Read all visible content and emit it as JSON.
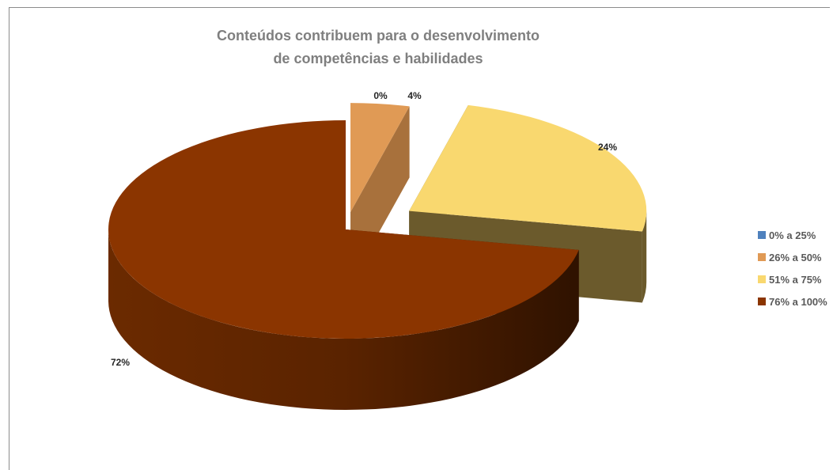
{
  "chart_data": {
    "type": "pie",
    "title_lines": [
      "Conteúdos contribuem para o desenvolvimento",
      "de competências e habilidades"
    ],
    "legend_position": "right",
    "slices": [
      {
        "label": "0% a 25%",
        "value": 0,
        "data_label": "0%",
        "color": "#4f81bd",
        "side_color": "#3a6591"
      },
      {
        "label": "26% a 50%",
        "value": 4,
        "data_label": "4%",
        "color": "#e09a55",
        "side_color": "#a8713c"
      },
      {
        "label": "51% a 75%",
        "value": 24,
        "data_label": "24%",
        "color": "#f9d86f",
        "side_color": "#6b5a2c"
      },
      {
        "label": "76% a 100%",
        "value": 72,
        "data_label": "72%",
        "color": "#8b3500",
        "side_color": "#4a1c00"
      }
    ]
  }
}
